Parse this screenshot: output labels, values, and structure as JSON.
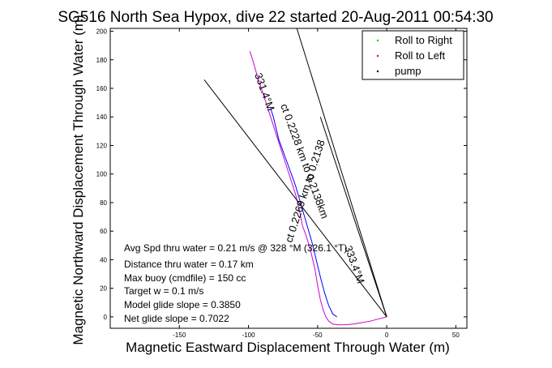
{
  "chart_data": {
    "type": "line",
    "title": "SG516 North Sea Hypox, dive 22 started 20-Aug-2011 00:54:30",
    "xlabel": "Magnetic Eastward Displacement Through Water (m)",
    "ylabel": "Magnetic Northward Displacement Through Water (m)",
    "xlim": [
      -200,
      58
    ],
    "ylim": [
      -8,
      202
    ],
    "xticks": [
      -150,
      -100,
      -50,
      0,
      50
    ],
    "yticks": [
      0,
      20,
      40,
      60,
      80,
      100,
      120,
      140,
      160,
      180,
      200
    ],
    "grid": false,
    "legend_position": "top-right",
    "legend": [
      {
        "label": "Roll to Right",
        "color": "#00cc00",
        "marker": "."
      },
      {
        "label": "Roll to Left",
        "color": "#ff0000",
        "marker": "."
      },
      {
        "label": "pump",
        "color": "#000000",
        "marker": "."
      }
    ],
    "series": [
      {
        "color": "#cc00cc",
        "points": [
          [
            0,
            0
          ],
          [
            -6,
            -1.5
          ],
          [
            -12,
            -3
          ],
          [
            -18,
            -4
          ],
          [
            -24,
            -5
          ],
          [
            -30,
            -5.5
          ],
          [
            -35,
            -5.6
          ],
          [
            -39,
            -5
          ],
          [
            -42,
            -3
          ],
          [
            -44,
            0
          ],
          [
            -46,
            5
          ],
          [
            -48,
            12
          ],
          [
            -50,
            22
          ],
          [
            -52,
            34
          ],
          [
            -55,
            46
          ],
          [
            -58,
            56
          ],
          [
            -61,
            64
          ],
          [
            -63,
            74
          ],
          [
            -66,
            86
          ],
          [
            -70,
            98
          ],
          [
            -74,
            110
          ],
          [
            -78,
            122
          ],
          [
            -82,
            134
          ],
          [
            -86,
            146
          ],
          [
            -90,
            158
          ],
          [
            -94,
            170
          ],
          [
            -97,
            180
          ],
          [
            -99,
            186
          ]
        ]
      },
      {
        "color": "#0000ff",
        "points": [
          [
            -36,
            0
          ],
          [
            -39,
            2
          ],
          [
            -42,
            8
          ],
          [
            -45,
            17
          ],
          [
            -48,
            28
          ],
          [
            -51,
            40
          ],
          [
            -54,
            52
          ],
          [
            -57,
            62
          ],
          [
            -60,
            72
          ],
          [
            -63,
            82
          ],
          [
            -66,
            92
          ],
          [
            -69,
            100
          ],
          [
            -72,
            108
          ],
          [
            -75,
            116
          ],
          [
            -78,
            124
          ],
          [
            -80,
            132
          ],
          [
            -82,
            140
          ],
          [
            -84,
            146
          ]
        ]
      },
      {
        "color": "#000000",
        "points": [
          [
            0,
            0
          ],
          [
            -65,
            202
          ]
        ]
      },
      {
        "color": "#000000",
        "points": [
          [
            0,
            0
          ],
          [
            -132,
            166
          ]
        ]
      },
      {
        "color": "#000000",
        "points": [
          [
            0,
            0
          ],
          [
            -48,
            140
          ]
        ]
      }
    ]
  },
  "annotations": {
    "heading_label": "331.4°M",
    "distance_label": "ct 0.2228 km to 0.2138km",
    "bearing_label": "ct 0.2269 km to 0.2138",
    "bearing2_label": "333.4°M"
  },
  "stats": [
    "Avg Spd thru water = 0.21 m/s @ 328 °M (326.1 °T)",
    "Distance thru water = 0.17 km",
    "Max buoy (cmdfile) = 150 cc",
    "Target w = 0.1 m/s",
    "Model glide slope = 0.3850",
    "Net glide slope = 0.7022"
  ]
}
